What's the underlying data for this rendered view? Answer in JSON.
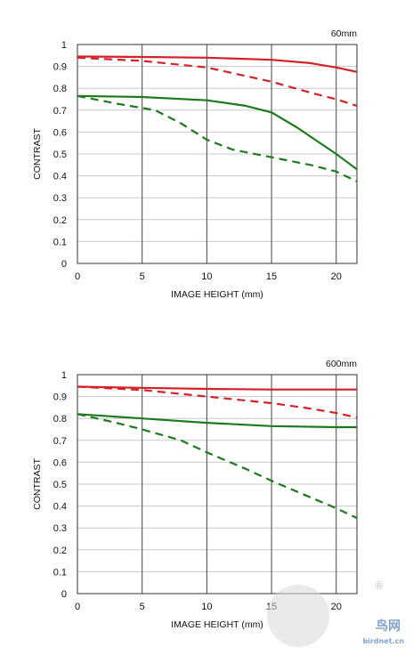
{
  "chart_data": [
    {
      "type": "line",
      "focal_label": "60mm",
      "xlabel": "IMAGE HEIGHT (mm)",
      "ylabel": "CONTRAST",
      "xlim": [
        0,
        21.6
      ],
      "ylim": [
        0,
        1
      ],
      "x_ticks": [
        "0",
        "5",
        "10",
        "15",
        "20"
      ],
      "y_ticks": [
        "0",
        "0.1",
        "0.2",
        "0.3",
        "0.4",
        "0.5",
        "0.6",
        "0.7",
        "0.8",
        "0.9",
        "1"
      ],
      "grid": true,
      "series": [
        {
          "color": "#d42027",
          "dashed": false,
          "x": [
            0,
            5,
            10,
            15,
            18,
            20,
            21.6
          ],
          "y": [
            0.945,
            0.943,
            0.94,
            0.93,
            0.915,
            0.895,
            0.875
          ]
        },
        {
          "color": "#d42027",
          "dashed": true,
          "x": [
            0,
            5,
            10,
            15,
            18,
            20,
            21.6
          ],
          "y": [
            0.94,
            0.925,
            0.895,
            0.83,
            0.78,
            0.75,
            0.72
          ]
        },
        {
          "color": "#1e7a1e",
          "dashed": false,
          "x": [
            0,
            5,
            10,
            13,
            15,
            17,
            20,
            21.6
          ],
          "y": [
            0.765,
            0.76,
            0.745,
            0.72,
            0.69,
            0.62,
            0.5,
            0.43
          ]
        },
        {
          "color": "#1e7a1e",
          "dashed": true,
          "x": [
            0,
            3,
            6,
            8,
            10,
            12,
            15,
            18,
            20,
            21.6
          ],
          "y": [
            0.765,
            0.73,
            0.7,
            0.64,
            0.565,
            0.52,
            0.485,
            0.45,
            0.42,
            0.375
          ]
        }
      ]
    },
    {
      "type": "line",
      "focal_label": "600mm",
      "xlabel": "IMAGE HEIGHT (mm)",
      "ylabel": "CONTRAST",
      "xlim": [
        0,
        21.6
      ],
      "ylim": [
        0,
        1
      ],
      "x_ticks": [
        "0",
        "5",
        "10",
        "15",
        "20"
      ],
      "y_ticks": [
        "0",
        "0.1",
        "0.2",
        "0.3",
        "0.4",
        "0.5",
        "0.6",
        "0.7",
        "0.8",
        "0.9",
        "1"
      ],
      "grid": true,
      "series": [
        {
          "color": "#d42027",
          "dashed": false,
          "x": [
            0,
            5,
            10,
            15,
            20,
            21.6
          ],
          "y": [
            0.945,
            0.94,
            0.935,
            0.932,
            0.932,
            0.932
          ]
        },
        {
          "color": "#d42027",
          "dashed": true,
          "x": [
            0,
            5,
            10,
            15,
            18,
            20,
            21.6
          ],
          "y": [
            0.945,
            0.93,
            0.9,
            0.87,
            0.845,
            0.825,
            0.805
          ]
        },
        {
          "color": "#1e7a1e",
          "dashed": false,
          "x": [
            0,
            5,
            10,
            15,
            20,
            21.6
          ],
          "y": [
            0.82,
            0.8,
            0.78,
            0.765,
            0.76,
            0.76
          ]
        },
        {
          "color": "#1e7a1e",
          "dashed": true,
          "x": [
            0,
            3,
            5,
            8,
            10,
            13,
            15,
            18,
            20,
            21.6
          ],
          "y": [
            0.82,
            0.78,
            0.75,
            0.7,
            0.645,
            0.57,
            0.515,
            0.44,
            0.39,
            0.345
          ]
        }
      ]
    }
  ],
  "watermark": {
    "site": "birdnet.cn",
    "brand": "鸟网",
    "reg": "®"
  }
}
